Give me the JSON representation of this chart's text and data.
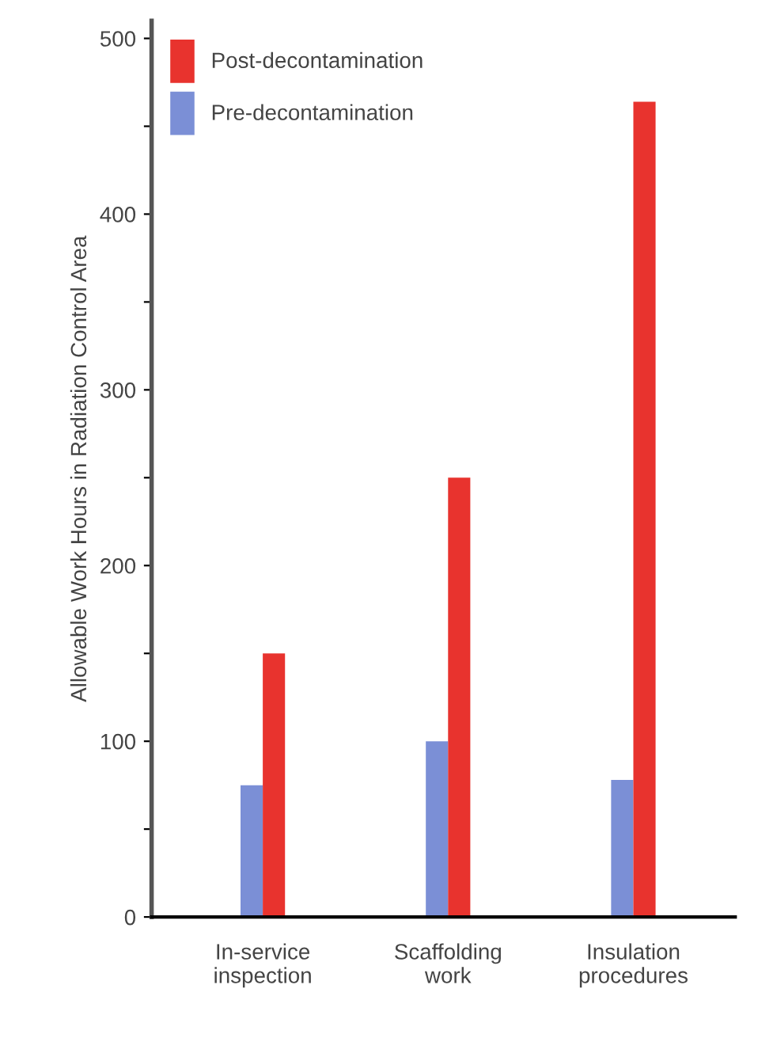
{
  "chart_data": {
    "type": "bar",
    "ylabel": "Allowable Work Hours in Radiation Control Area",
    "categories": [
      "In-service\ninspection",
      "Scaffolding\nwork",
      "Insulation\nprocedures"
    ],
    "series": [
      {
        "name": "Pre-decontamination",
        "color": "#7b8fd6",
        "values": [
          75,
          100,
          78
        ]
      },
      {
        "name": "Post-decontamination",
        "color": "#e8332e",
        "values": [
          150,
          250,
          464
        ]
      }
    ],
    "ylim": [
      0,
      510
    ],
    "yticks": [
      0,
      {
        "value": 50,
        "label": null
      },
      100,
      {
        "value": 150,
        "label": null
      },
      200,
      {
        "value": 250,
        "label": null
      },
      300,
      {
        "value": 350,
        "label": null
      },
      400,
      {
        "value": 450,
        "label": null
      },
      500
    ],
    "grid": false,
    "legend": "top left"
  }
}
